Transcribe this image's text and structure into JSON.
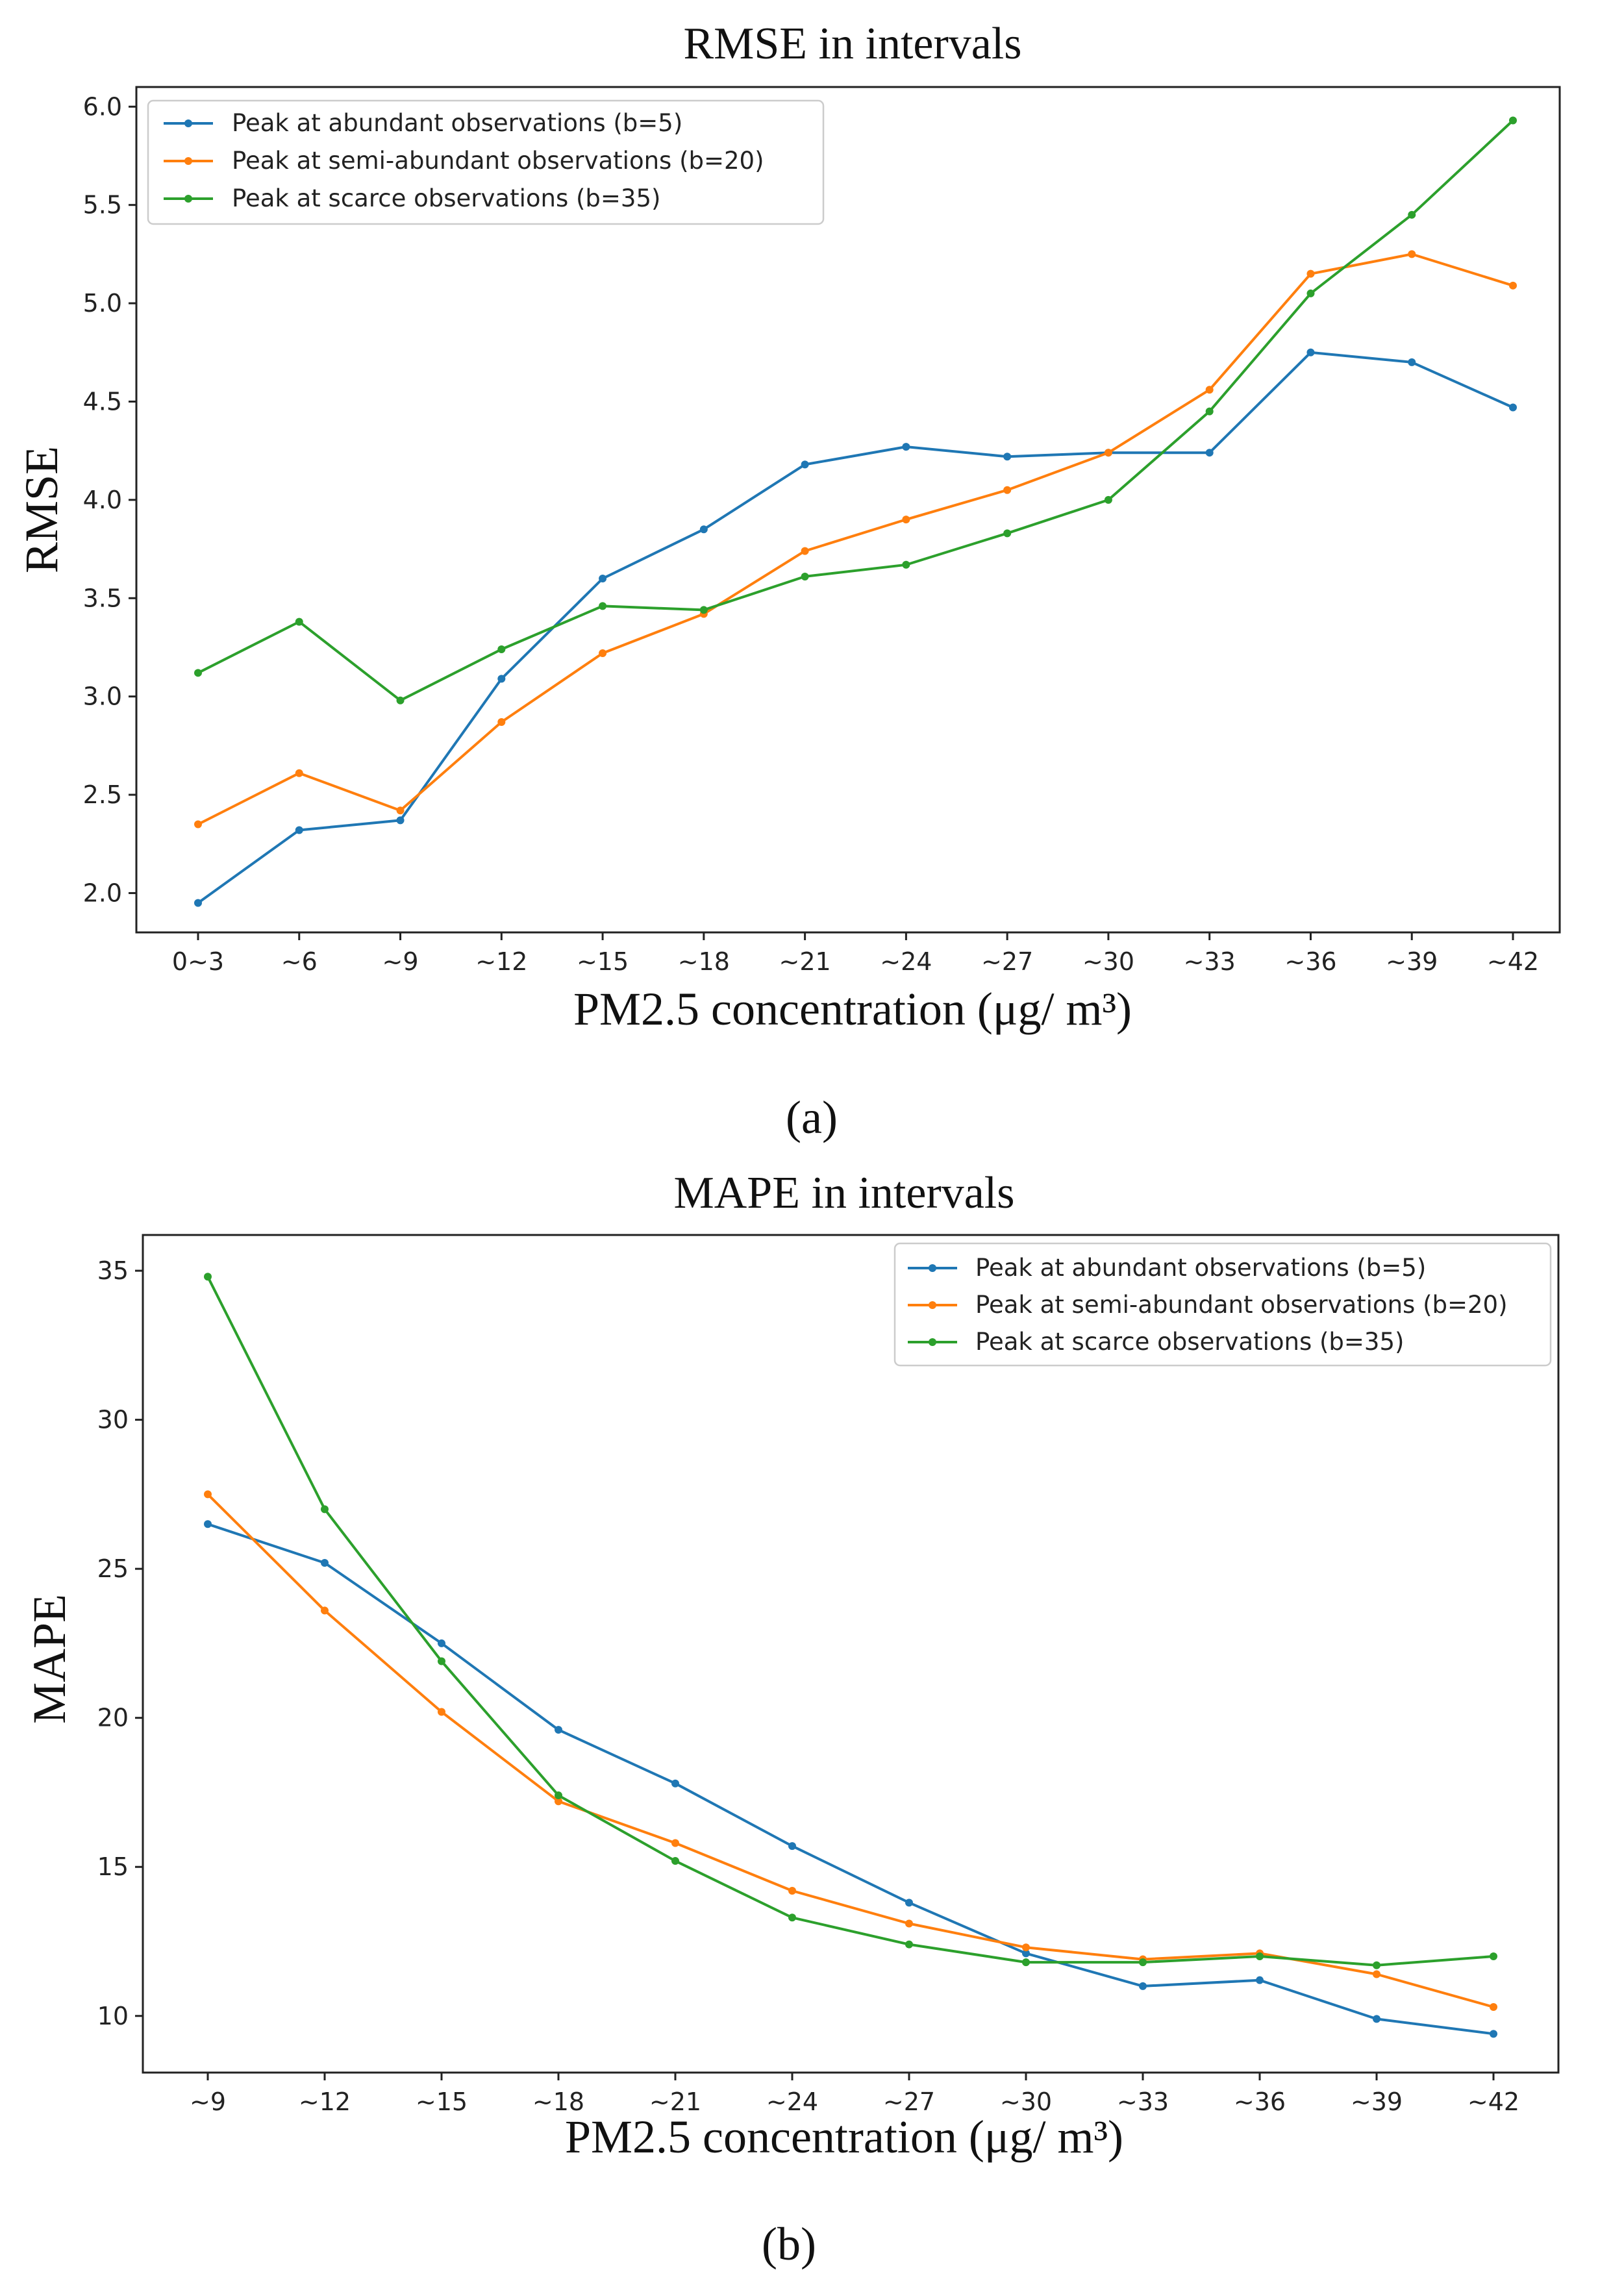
{
  "chart_data": [
    {
      "type": "line",
      "title": "RMSE in intervals",
      "xlabel": "PM2.5 concentration (μg/ m³)",
      "ylabel": "RMSE",
      "caption": "(a)",
      "legend_position": "top-left",
      "grid": false,
      "ylim": [
        1.8,
        6.1
      ],
      "yticks": [
        "2.0",
        "2.5",
        "3.0",
        "3.5",
        "4.0",
        "4.5",
        "5.0",
        "5.5",
        "6.0"
      ],
      "categories": [
        "0~3",
        "~6",
        "~9",
        "~12",
        "~15",
        "~18",
        "~21",
        "~24",
        "~27",
        "~30",
        "~33",
        "~36",
        "~39",
        "~42"
      ],
      "series": [
        {
          "name": "Peak at abundant observations (b=5)",
          "color": "#1f77b4",
          "values": [
            1.95,
            2.32,
            2.37,
            3.09,
            3.6,
            3.85,
            4.18,
            4.27,
            4.22,
            4.24,
            4.24,
            4.75,
            4.7,
            4.47
          ]
        },
        {
          "name": "Peak at semi-abundant observations (b=20)",
          "color": "#ff7f0e",
          "values": [
            2.35,
            2.61,
            2.42,
            2.87,
            3.22,
            3.42,
            3.74,
            3.9,
            4.05,
            4.24,
            4.56,
            5.15,
            5.25,
            5.09
          ]
        },
        {
          "name": "Peak at scarce observations (b=35)",
          "color": "#2ca02c",
          "values": [
            3.12,
            3.38,
            2.98,
            3.24,
            3.46,
            3.44,
            3.61,
            3.67,
            3.83,
            4.0,
            4.45,
            5.05,
            5.45,
            5.93
          ]
        }
      ]
    },
    {
      "type": "line",
      "title": "MAPE in intervals",
      "xlabel": "PM2.5 concentration (μg/ m³)",
      "ylabel": "MAPE",
      "caption": "(b)",
      "legend_position": "top-right",
      "grid": false,
      "ylim": [
        8.1,
        36.2
      ],
      "yticks": [
        "10",
        "15",
        "20",
        "25",
        "30",
        "35"
      ],
      "categories": [
        "~9",
        "~12",
        "~15",
        "~18",
        "~21",
        "~24",
        "~27",
        "~30",
        "~33",
        "~36",
        "~39",
        "~42"
      ],
      "series": [
        {
          "name": "Peak at abundant observations (b=5)",
          "color": "#1f77b4",
          "values": [
            26.5,
            25.2,
            22.5,
            19.6,
            17.8,
            15.7,
            13.8,
            12.1,
            11.0,
            11.2,
            9.9,
            9.4
          ]
        },
        {
          "name": "Peak at semi-abundant observations (b=20)",
          "color": "#ff7f0e",
          "values": [
            27.5,
            23.6,
            20.2,
            17.2,
            15.8,
            14.2,
            13.1,
            12.3,
            11.9,
            12.1,
            11.4,
            10.3
          ]
        },
        {
          "name": "Peak at scarce observations (b=35)",
          "color": "#2ca02c",
          "values": [
            34.8,
            27.0,
            21.9,
            17.4,
            15.2,
            13.3,
            12.4,
            11.8,
            11.8,
            12.0,
            11.7,
            12.0
          ]
        }
      ]
    }
  ]
}
